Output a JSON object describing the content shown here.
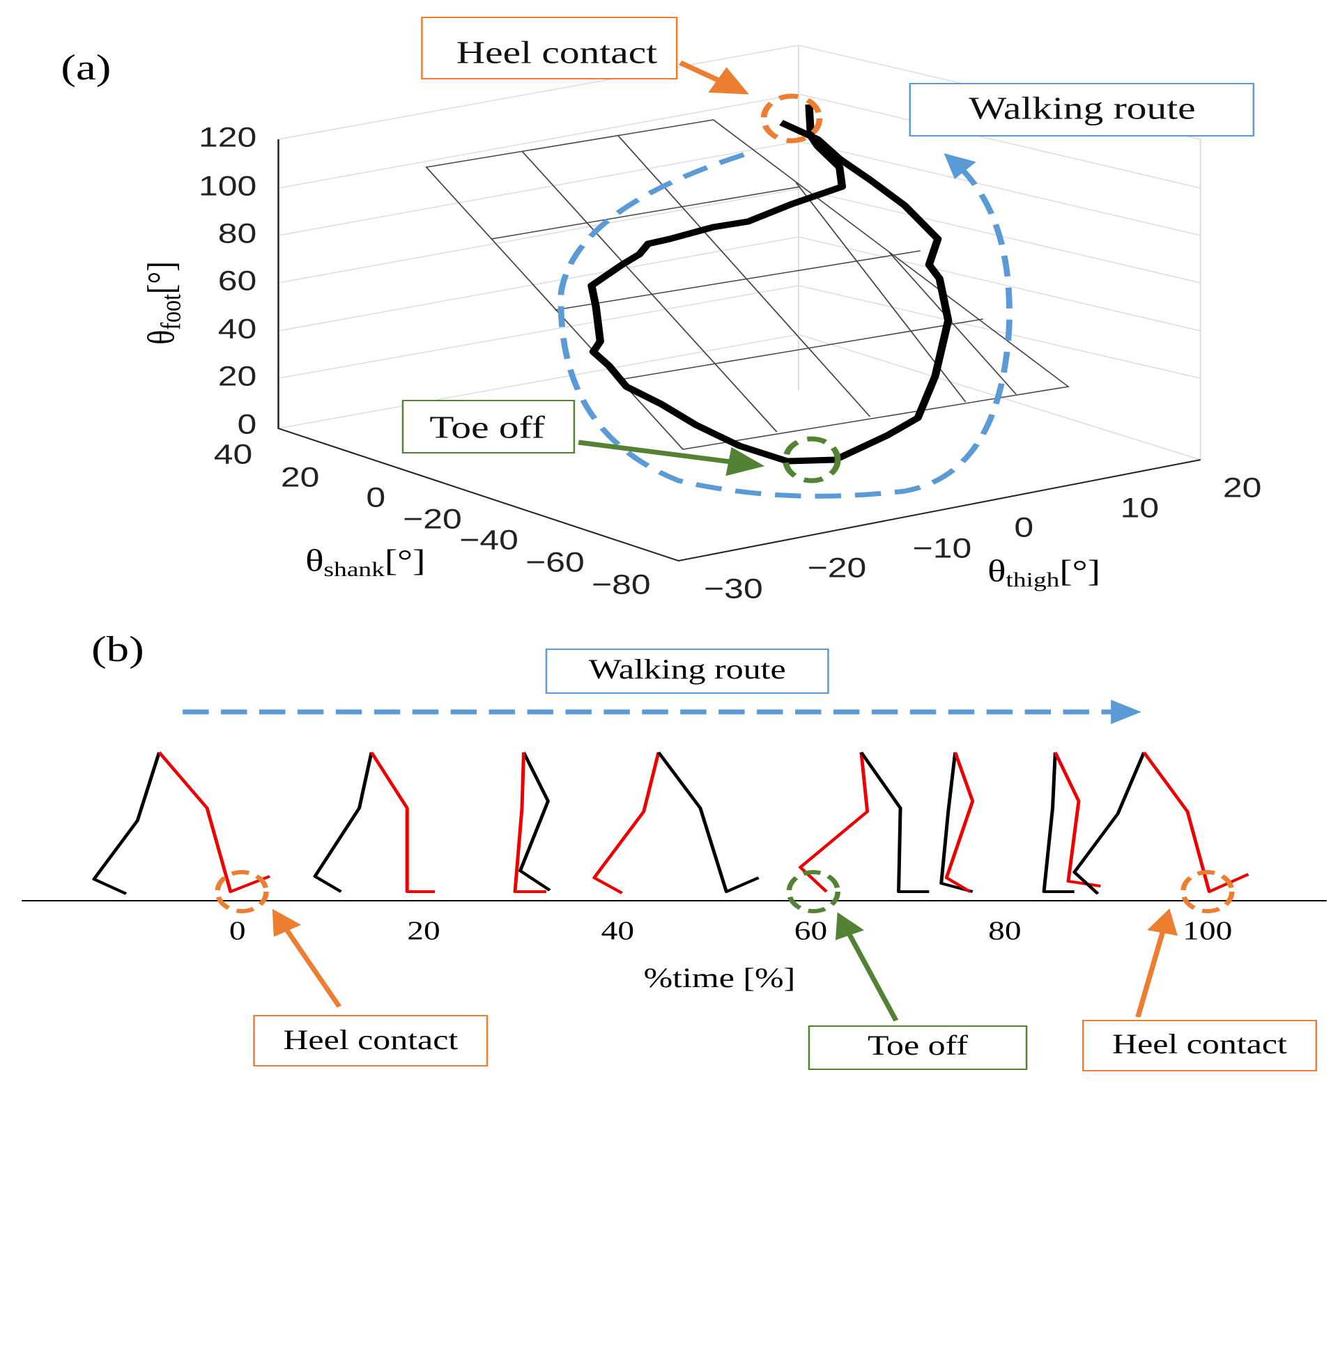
{
  "panel_a": {
    "label": "(a)",
    "callouts": {
      "heel_contact": "Heel contact",
      "walking_route": "Walking route",
      "toe_off": "Toe off"
    },
    "foot_axis": {
      "symbol": "θ",
      "subscript": "foot",
      "unit": "[°]",
      "ticks": [
        "120",
        "100",
        "80",
        "60",
        "40",
        "20",
        "0"
      ]
    },
    "shank_axis": {
      "symbol": "θ",
      "subscript": "shank",
      "unit": "[°]",
      "ticks": [
        "40",
        "20",
        "0",
        "−20",
        "−40",
        "−60",
        "−80"
      ]
    },
    "thigh_axis": {
      "symbol": "θ",
      "subscript": "thigh",
      "unit": "[°]",
      "ticks": [
        "−30",
        "−20",
        "−10",
        "0",
        "10",
        "20"
      ]
    }
  },
  "panel_b": {
    "label": "(b)",
    "walking_route": "Walking route",
    "x_axis": {
      "label": "%time [%]",
      "ticks": [
        "0",
        "20",
        "40",
        "60",
        "80",
        "100"
      ]
    },
    "callouts": [
      "Heel contact",
      "Toe off",
      "Heel contact"
    ]
  }
}
